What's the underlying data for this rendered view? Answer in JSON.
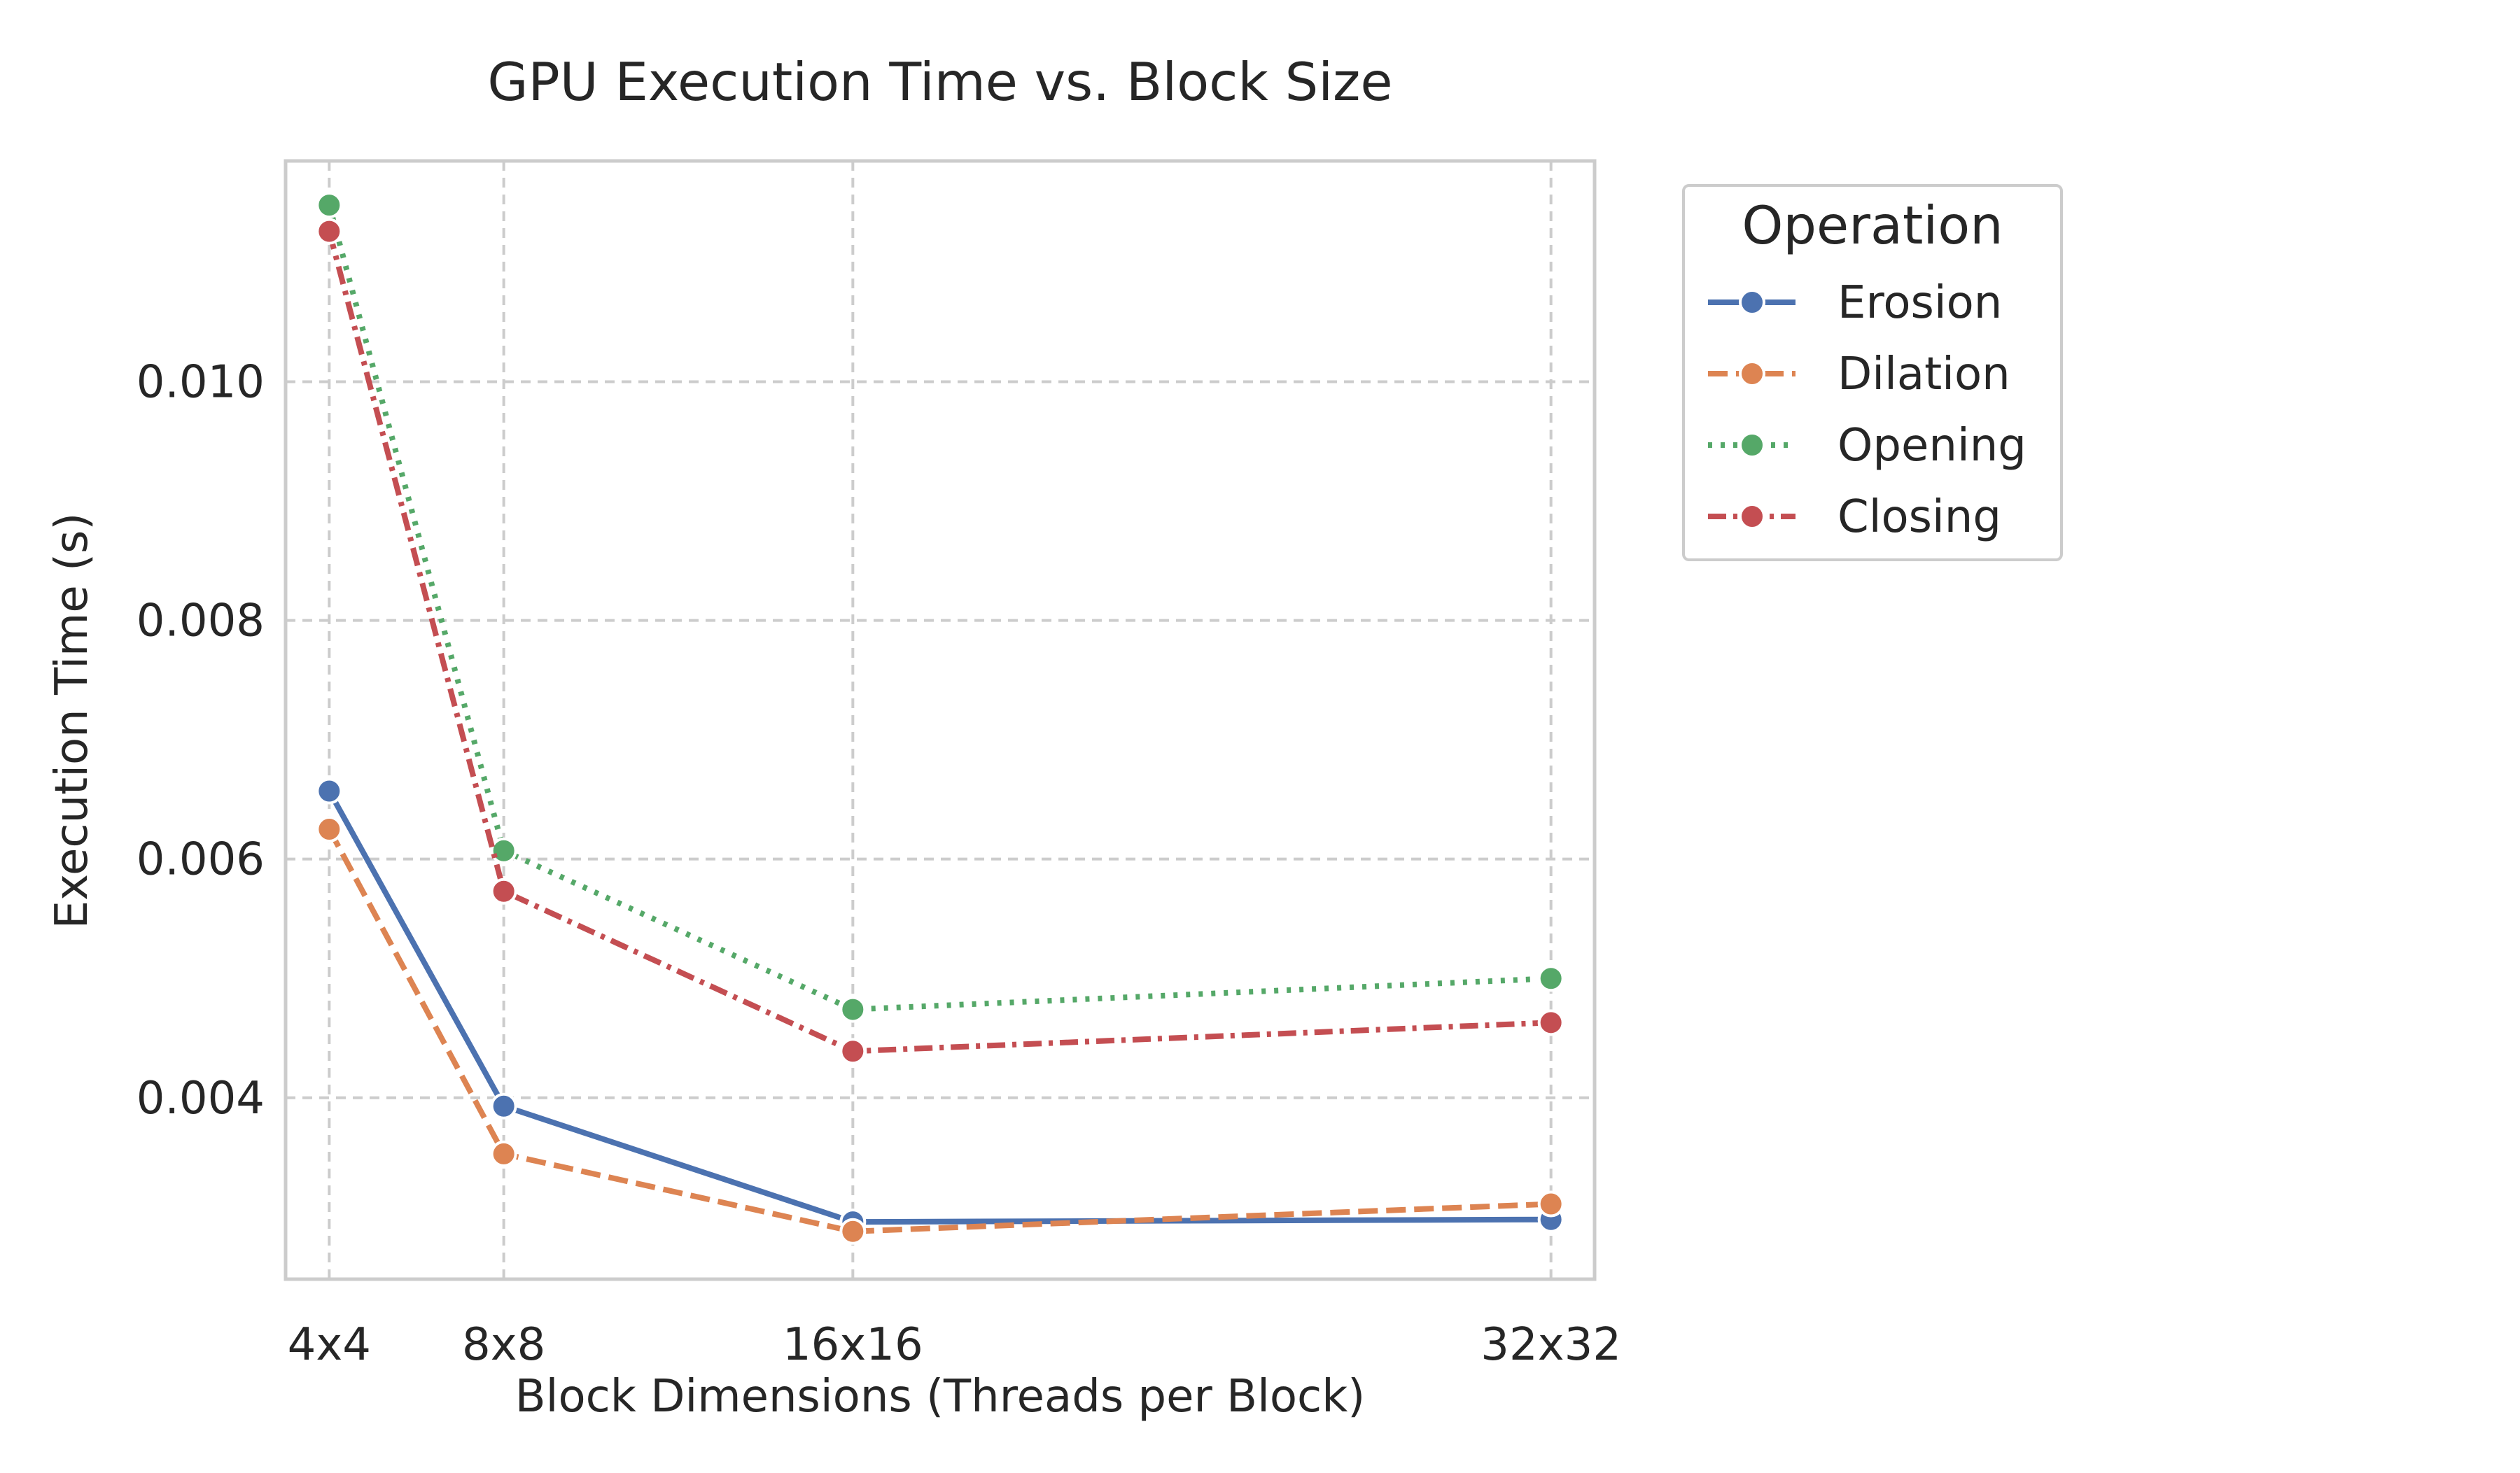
{
  "chart_data": {
    "type": "line",
    "title": "GPU Execution Time vs. Block Size",
    "xlabel": "Block Dimensions (Threads per Block)",
    "ylabel": "Execution Time (s)",
    "x_values": [
      4,
      8,
      16,
      32
    ],
    "x_tick_labels": [
      "4x4",
      "8x8",
      "16x16",
      "32x32"
    ],
    "y_ticks": [
      0.004,
      0.006,
      0.008,
      0.01
    ],
    "y_tick_labels": [
      "0.004",
      "0.006",
      "0.008",
      "0.010"
    ],
    "xlim": [
      3,
      33
    ],
    "ylim": [
      0.00248,
      0.01185
    ],
    "grid": true,
    "legend": {
      "title": "Operation",
      "placement": "outside-top-right"
    },
    "series": [
      {
        "name": "Erosion",
        "color": "#4c72b0",
        "dash": "solid",
        "values": [
          0.00657,
          0.00393,
          0.00296,
          0.00298
        ]
      },
      {
        "name": "Dilation",
        "color": "#dd8452",
        "dash": "dashed",
        "values": [
          0.00625,
          0.00353,
          0.00288,
          0.00311
        ]
      },
      {
        "name": "Opening",
        "color": "#55a868",
        "dash": "dotted",
        "values": [
          0.01148,
          0.00607,
          0.00474,
          0.005
        ]
      },
      {
        "name": "Closing",
        "color": "#c44e52",
        "dash": "dashdot",
        "values": [
          0.01126,
          0.00573,
          0.00439,
          0.00463
        ]
      }
    ]
  }
}
